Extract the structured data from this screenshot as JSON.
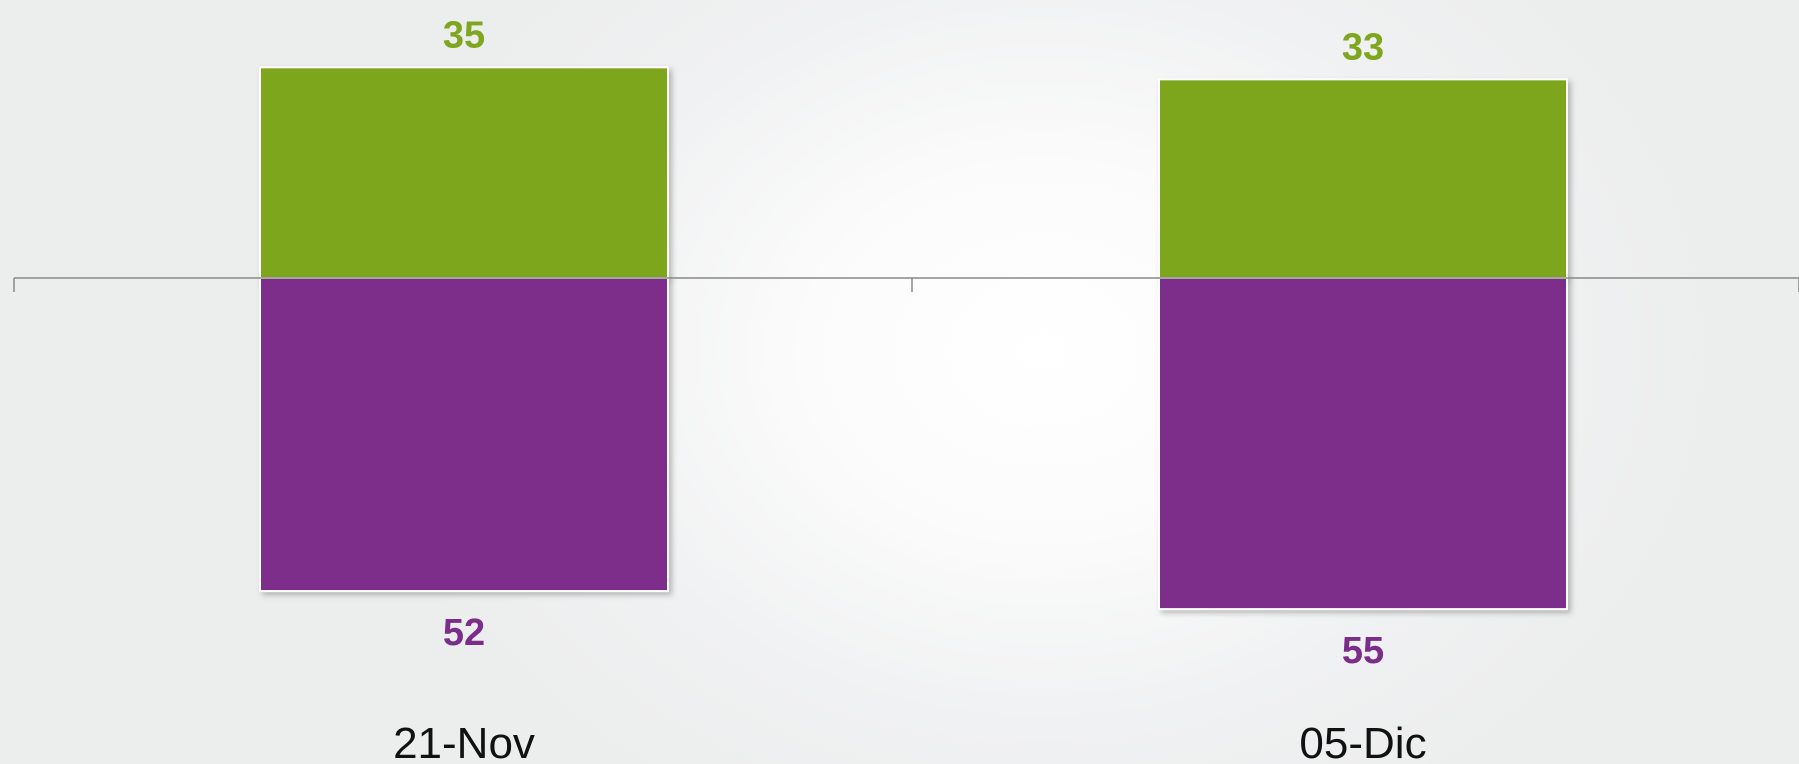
{
  "chart_data": {
    "type": "bar",
    "stacked": "diverging",
    "categories": [
      "21-Nov",
      "05-Dic"
    ],
    "series": [
      {
        "values": [
          35,
          33
        ],
        "color": "#7ea61e",
        "direction": "up",
        "label_color": "#7ea61e"
      },
      {
        "values": [
          52,
          55
        ],
        "color": "#7b2d8a",
        "direction": "down",
        "label_color": "#7b2d8a"
      }
    ],
    "show_data_labels": true,
    "grid": false,
    "legend": "none",
    "baseline_color": "#888888"
  }
}
